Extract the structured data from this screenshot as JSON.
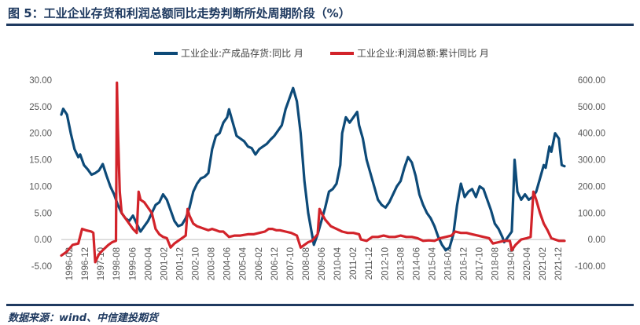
{
  "title": "图 5：工业企业存货和利润总额同比走势判断所处周期阶段（%）",
  "source": "数据来源：wind、中信建投期货",
  "chart_data": {
    "type": "line",
    "colors": {
      "inventory": "#0d4a78",
      "profit": "#d2232a"
    },
    "legend": [
      "工业企业:产成品存货:同比 月",
      "工业企业:利润总额:累计同比 月"
    ],
    "legend_position": "top",
    "y_left": {
      "min": -5,
      "max": 30,
      "ticks": [
        "-5.00",
        "0.00",
        "5.00",
        "10.00",
        "15.00",
        "20.00",
        "25.00",
        "30.00"
      ]
    },
    "y_right": {
      "min": -100,
      "max": 600,
      "ticks": [
        "-100.00",
        "0.00",
        "100.00",
        "200.00",
        "300.00",
        "400.00",
        "500.00",
        "600.00"
      ]
    },
    "x_ticks": [
      "1996-02",
      "1996-12",
      "1997-10",
      "1998-08",
      "1999-06",
      "2000-04",
      "2001-02",
      "2001-12",
      "2002-10",
      "2003-08",
      "2004-06",
      "2005-04",
      "2006-02",
      "2006-12",
      "2007-10",
      "2008-08",
      "2009-06",
      "2010-04",
      "2011-02",
      "2011-12",
      "2012-10",
      "2013-08",
      "2014-06",
      "2015-04",
      "2016-02",
      "2016-12",
      "2017-10",
      "2018-08",
      "2019-06",
      "2020-04",
      "2021-02",
      "2021-12"
    ],
    "series": [
      {
        "name": "工业企业:产成品存货:同比 月",
        "axis": "left",
        "points": [
          [
            1996.1,
            23.5
          ],
          [
            1996.2,
            24.6
          ],
          [
            1996.4,
            23.5
          ],
          [
            1996.6,
            20.0
          ],
          [
            1996.8,
            17.0
          ],
          [
            1997.0,
            15.5
          ],
          [
            1997.1,
            16.0
          ],
          [
            1997.3,
            14.0
          ],
          [
            1997.5,
            13.2
          ],
          [
            1997.7,
            12.2
          ],
          [
            1997.9,
            12.5
          ],
          [
            1998.1,
            13.0
          ],
          [
            1998.3,
            14.2
          ],
          [
            1998.5,
            12.0
          ],
          [
            1998.7,
            10.0
          ],
          [
            1998.9,
            8.5
          ],
          [
            1999.1,
            6.5
          ],
          [
            1999.3,
            5.0
          ],
          [
            1999.5,
            4.0
          ],
          [
            1999.7,
            3.5
          ],
          [
            1999.9,
            4.5
          ],
          [
            2000.1,
            3.0
          ],
          [
            2000.3,
            1.5
          ],
          [
            2000.5,
            2.5
          ],
          [
            2000.7,
            3.5
          ],
          [
            2000.9,
            5.0
          ],
          [
            2001.1,
            6.5
          ],
          [
            2001.3,
            7.0
          ],
          [
            2001.5,
            8.5
          ],
          [
            2001.7,
            7.5
          ],
          [
            2001.9,
            5.5
          ],
          [
            2002.1,
            3.5
          ],
          [
            2002.3,
            2.5
          ],
          [
            2002.5,
            2.8
          ],
          [
            2002.7,
            4.0
          ],
          [
            2002.9,
            6.0
          ],
          [
            2003.1,
            9.0
          ],
          [
            2003.3,
            10.5
          ],
          [
            2003.5,
            11.5
          ],
          [
            2003.7,
            11.8
          ],
          [
            2003.9,
            12.5
          ],
          [
            2004.1,
            17.0
          ],
          [
            2004.3,
            19.5
          ],
          [
            2004.5,
            20.0
          ],
          [
            2004.7,
            22.0
          ],
          [
            2004.9,
            23.0
          ],
          [
            2005.0,
            24.5
          ],
          [
            2005.2,
            22.0
          ],
          [
            2005.4,
            19.5
          ],
          [
            2005.6,
            19.0
          ],
          [
            2005.8,
            18.5
          ],
          [
            2006.0,
            17.5
          ],
          [
            2006.2,
            17.2
          ],
          [
            2006.4,
            16.0
          ],
          [
            2006.6,
            17.0
          ],
          [
            2006.8,
            17.5
          ],
          [
            2007.0,
            18.0
          ],
          [
            2007.2,
            18.8
          ],
          [
            2007.4,
            19.5
          ],
          [
            2007.6,
            20.5
          ],
          [
            2007.8,
            21.5
          ],
          [
            2008.0,
            24.5
          ],
          [
            2008.2,
            26.5
          ],
          [
            2008.4,
            28.5
          ],
          [
            2008.6,
            26.0
          ],
          [
            2008.8,
            20.0
          ],
          [
            2009.0,
            11.0
          ],
          [
            2009.2,
            5.0
          ],
          [
            2009.4,
            1.0
          ],
          [
            2009.5,
            -1.0
          ],
          [
            2009.7,
            1.0
          ],
          [
            2009.9,
            3.5
          ],
          [
            2010.1,
            6.0
          ],
          [
            2010.3,
            9.0
          ],
          [
            2010.5,
            9.5
          ],
          [
            2010.7,
            10.5
          ],
          [
            2010.9,
            14.0
          ],
          [
            2011.0,
            20.0
          ],
          [
            2011.2,
            23.0
          ],
          [
            2011.4,
            22.0
          ],
          [
            2011.6,
            23.0
          ],
          [
            2011.8,
            24.0
          ],
          [
            2011.9,
            21.5
          ],
          [
            2012.1,
            19.0
          ],
          [
            2012.3,
            15.0
          ],
          [
            2012.5,
            12.5
          ],
          [
            2012.7,
            10.0
          ],
          [
            2012.9,
            7.5
          ],
          [
            2013.1,
            6.5
          ],
          [
            2013.3,
            6.0
          ],
          [
            2013.5,
            7.0
          ],
          [
            2013.7,
            8.5
          ],
          [
            2013.9,
            10.0
          ],
          [
            2014.1,
            11.0
          ],
          [
            2014.3,
            13.5
          ],
          [
            2014.5,
            15.5
          ],
          [
            2014.7,
            14.5
          ],
          [
            2014.9,
            12.0
          ],
          [
            2015.1,
            8.5
          ],
          [
            2015.3,
            6.5
          ],
          [
            2015.5,
            5.0
          ],
          [
            2015.7,
            4.0
          ],
          [
            2015.9,
            2.5
          ],
          [
            2016.1,
            0.5
          ],
          [
            2016.3,
            -1.0
          ],
          [
            2016.5,
            -2.0
          ],
          [
            2016.7,
            -1.5
          ],
          [
            2016.9,
            1.0
          ],
          [
            2017.1,
            6.5
          ],
          [
            2017.3,
            10.5
          ],
          [
            2017.5,
            8.0
          ],
          [
            2017.7,
            9.0
          ],
          [
            2017.9,
            9.5
          ],
          [
            2018.1,
            8.0
          ],
          [
            2018.3,
            10.0
          ],
          [
            2018.5,
            9.5
          ],
          [
            2018.7,
            7.5
          ],
          [
            2018.9,
            5.5
          ],
          [
            2019.1,
            3.0
          ],
          [
            2019.3,
            2.0
          ],
          [
            2019.5,
            0.5
          ],
          [
            2019.6,
            -0.5
          ],
          [
            2019.8,
            0.5
          ],
          [
            2020.0,
            1.5
          ],
          [
            2020.1,
            10.0
          ],
          [
            2020.15,
            15.0
          ],
          [
            2020.3,
            9.0
          ],
          [
            2020.5,
            7.5
          ],
          [
            2020.7,
            8.5
          ],
          [
            2020.9,
            7.5
          ],
          [
            2021.1,
            8.0
          ],
          [
            2021.3,
            9.0
          ],
          [
            2021.5,
            11.5
          ],
          [
            2021.7,
            14.0
          ],
          [
            2021.8,
            13.5
          ],
          [
            2022.0,
            17.5
          ],
          [
            2022.1,
            16.5
          ],
          [
            2022.3,
            20.0
          ],
          [
            2022.5,
            19.0
          ],
          [
            2022.65,
            14.0
          ],
          [
            2022.8,
            13.8
          ]
        ]
      },
      {
        "name": "工业企业:利润总额:累计同比 月",
        "axis": "right",
        "points": [
          [
            1996.1,
            -60
          ],
          [
            1996.4,
            -45
          ],
          [
            1996.7,
            -20
          ],
          [
            1997.0,
            -15
          ],
          [
            1997.2,
            40
          ],
          [
            1997.4,
            35
          ],
          [
            1997.7,
            30
          ],
          [
            1997.8,
            25
          ],
          [
            1997.9,
            -85
          ],
          [
            1998.1,
            -55
          ],
          [
            1998.3,
            -40
          ],
          [
            1998.6,
            -20
          ],
          [
            1998.8,
            -10
          ],
          [
            1999.0,
            -5
          ],
          [
            1999.05,
            590
          ],
          [
            1999.1,
            420
          ],
          [
            1999.2,
            180
          ],
          [
            1999.3,
            100
          ],
          [
            1999.5,
            80
          ],
          [
            1999.7,
            60
          ],
          [
            1999.9,
            40
          ],
          [
            2000.1,
            25
          ],
          [
            2000.2,
            180
          ],
          [
            2000.3,
            150
          ],
          [
            2000.5,
            140
          ],
          [
            2000.7,
            120
          ],
          [
            2000.9,
            100
          ],
          [
            2001.1,
            40
          ],
          [
            2001.3,
            20
          ],
          [
            2001.5,
            10
          ],
          [
            2001.7,
            5
          ],
          [
            2001.9,
            -30
          ],
          [
            2002.1,
            -15
          ],
          [
            2002.3,
            -5
          ],
          [
            2002.5,
            5
          ],
          [
            2002.7,
            15
          ],
          [
            2002.8,
            115
          ],
          [
            2002.9,
            90
          ],
          [
            2003.1,
            60
          ],
          [
            2003.3,
            50
          ],
          [
            2003.5,
            45
          ],
          [
            2003.7,
            40
          ],
          [
            2003.9,
            35
          ],
          [
            2004.1,
            40
          ],
          [
            2004.3,
            35
          ],
          [
            2004.5,
            30
          ],
          [
            2004.7,
            30
          ],
          [
            2005.0,
            10
          ],
          [
            2005.3,
            15
          ],
          [
            2005.6,
            15
          ],
          [
            2006.0,
            20
          ],
          [
            2006.3,
            20
          ],
          [
            2006.6,
            25
          ],
          [
            2006.9,
            30
          ],
          [
            2007.1,
            40
          ],
          [
            2007.3,
            40
          ],
          [
            2007.5,
            35
          ],
          [
            2007.7,
            35
          ],
          [
            2008.0,
            30
          ],
          [
            2008.3,
            25
          ],
          [
            2008.6,
            15
          ],
          [
            2008.8,
            -30
          ],
          [
            2009.0,
            -20
          ],
          [
            2009.2,
            -10
          ],
          [
            2009.4,
            -5
          ],
          [
            2009.7,
            20
          ],
          [
            2009.8,
            115
          ],
          [
            2009.9,
            100
          ],
          [
            2010.1,
            75
          ],
          [
            2010.4,
            50
          ],
          [
            2010.7,
            40
          ],
          [
            2011.0,
            30
          ],
          [
            2011.3,
            25
          ],
          [
            2011.6,
            25
          ],
          [
            2011.9,
            20
          ],
          [
            2012.0,
            0
          ],
          [
            2012.3,
            -5
          ],
          [
            2012.6,
            10
          ],
          [
            2012.9,
            10
          ],
          [
            2013.2,
            15
          ],
          [
            2013.5,
            10
          ],
          [
            2013.8,
            10
          ],
          [
            2014.1,
            15
          ],
          [
            2014.4,
            10
          ],
          [
            2014.7,
            10
          ],
          [
            2015.0,
            5
          ],
          [
            2015.3,
            -5
          ],
          [
            2015.6,
            -3
          ],
          [
            2015.9,
            -5
          ],
          [
            2016.2,
            5
          ],
          [
            2016.5,
            10
          ],
          [
            2016.8,
            15
          ],
          [
            2017.0,
            30
          ],
          [
            2017.3,
            25
          ],
          [
            2017.6,
            25
          ],
          [
            2017.9,
            20
          ],
          [
            2018.2,
            15
          ],
          [
            2018.5,
            10
          ],
          [
            2018.8,
            5
          ],
          [
            2019.0,
            -15
          ],
          [
            2019.3,
            -10
          ],
          [
            2019.6,
            -5
          ],
          [
            2019.9,
            -5
          ],
          [
            2020.0,
            -40
          ],
          [
            2020.2,
            -20
          ],
          [
            2020.5,
            0
          ],
          [
            2020.8,
            5
          ],
          [
            2021.0,
            10
          ],
          [
            2021.15,
            180
          ],
          [
            2021.3,
            150
          ],
          [
            2021.5,
            100
          ],
          [
            2021.7,
            60
          ],
          [
            2021.9,
            35
          ],
          [
            2022.1,
            5
          ],
          [
            2022.3,
            0
          ],
          [
            2022.5,
            -5
          ],
          [
            2022.7,
            -5
          ],
          [
            2022.8,
            -5
          ]
        ]
      }
    ]
  }
}
